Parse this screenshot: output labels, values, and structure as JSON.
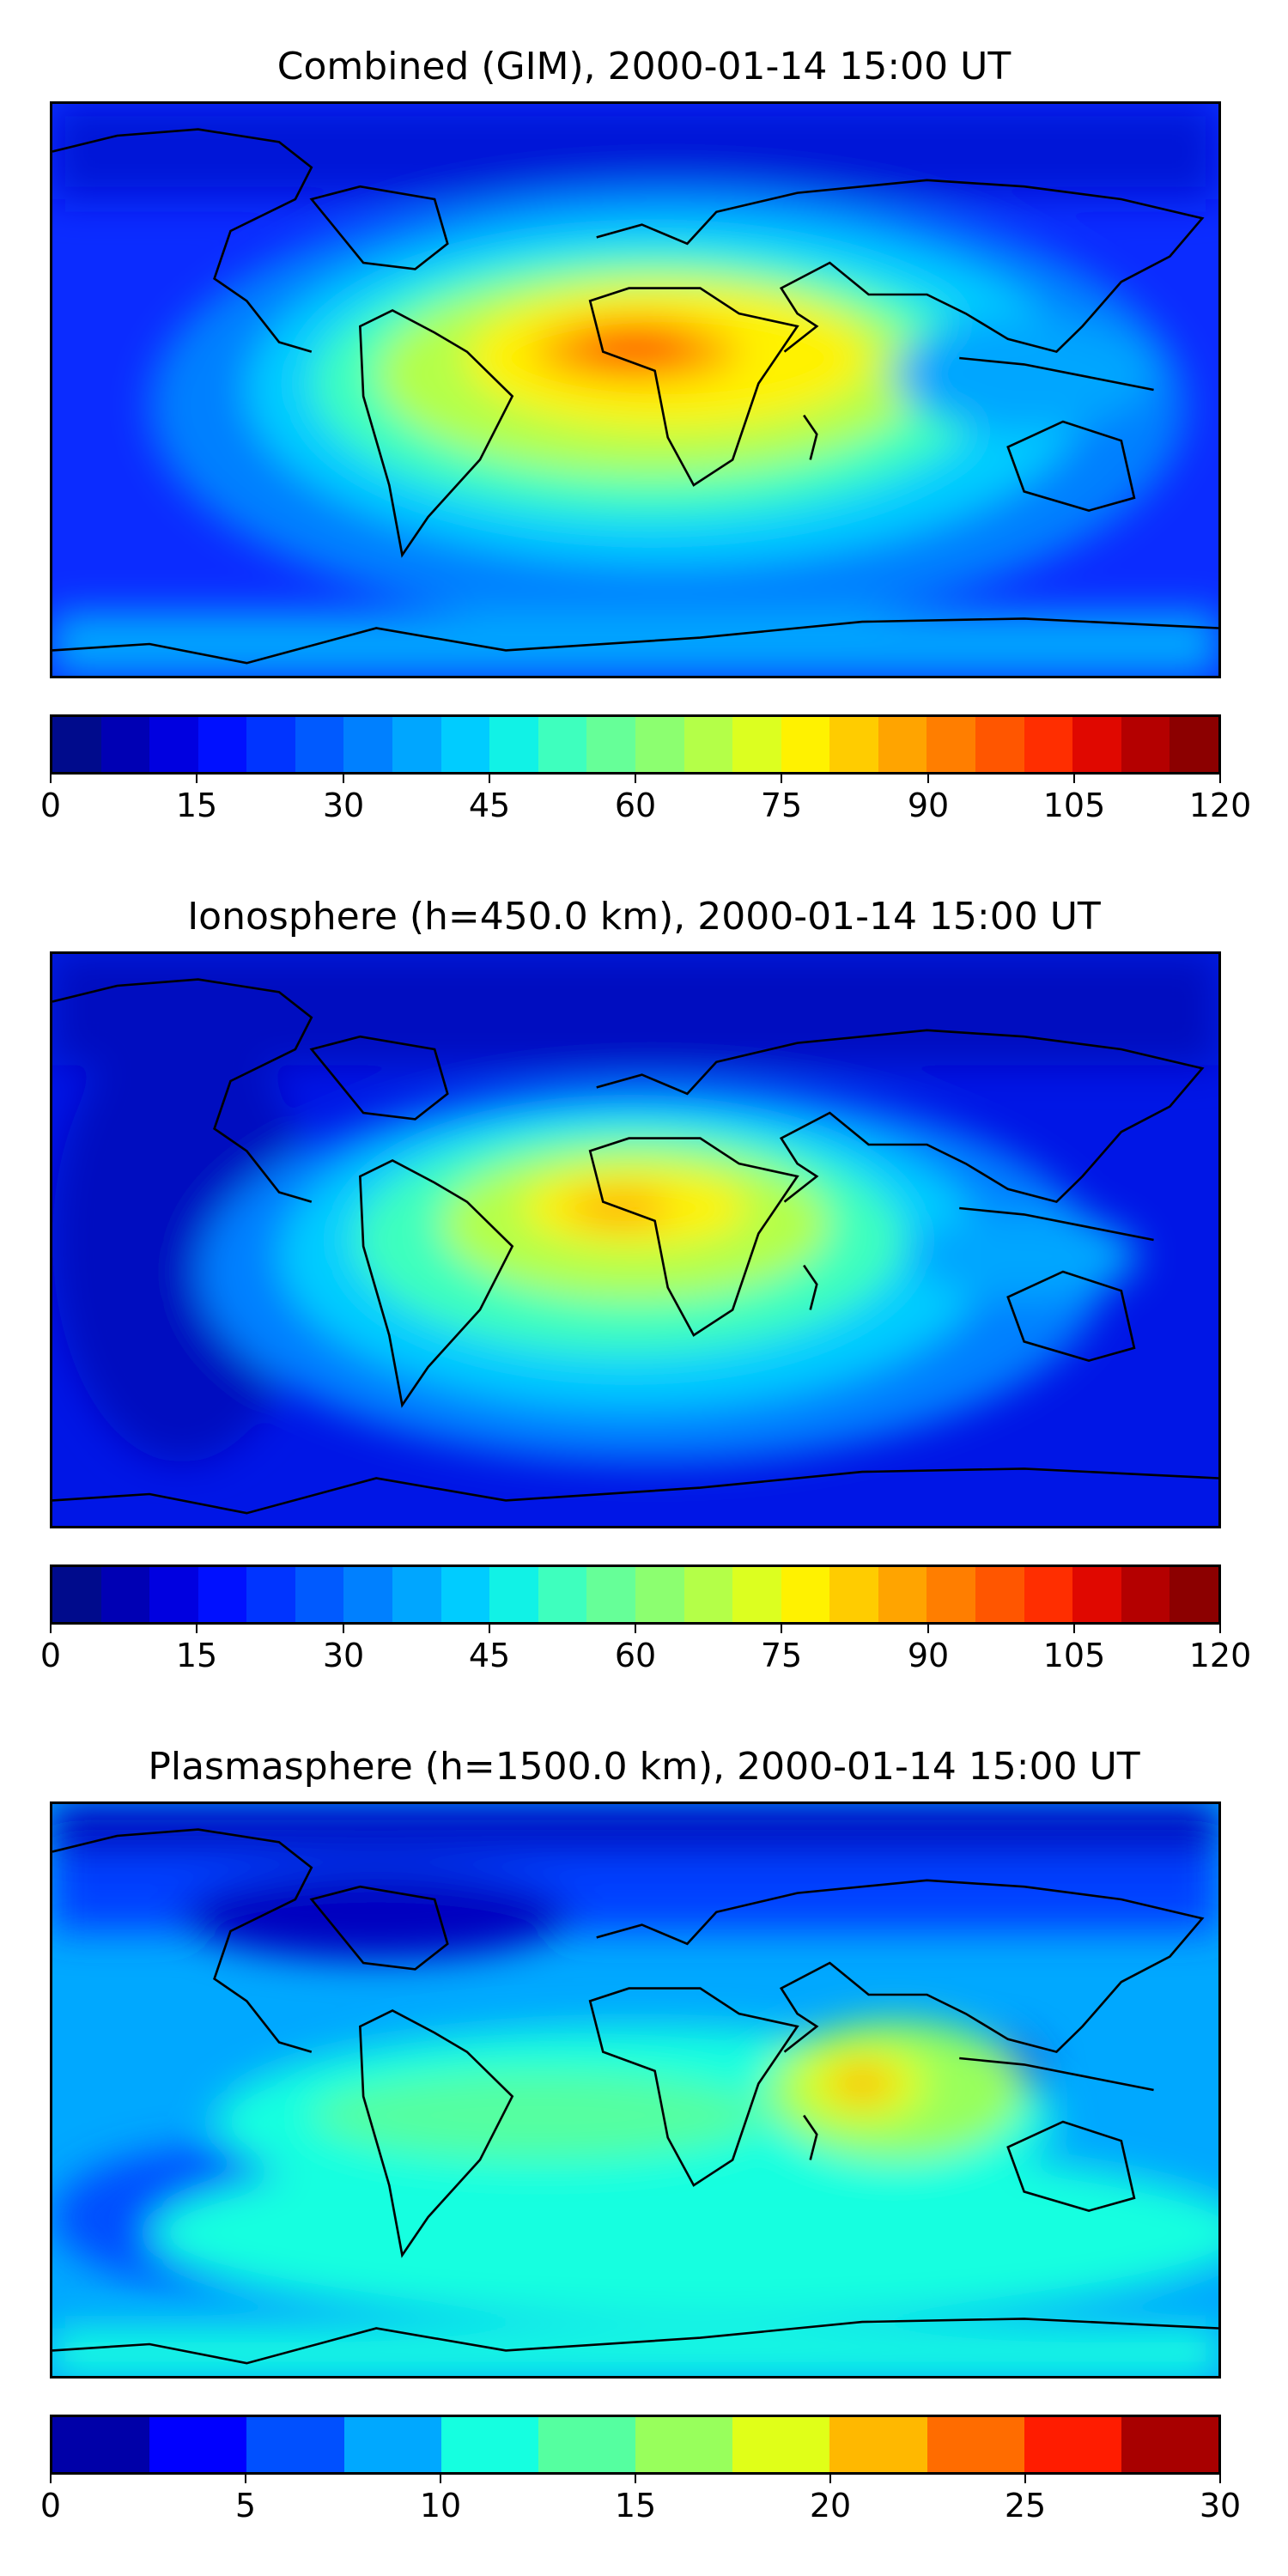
{
  "panels": [
    {
      "title": "Combined (GIM), 2000-01-14 15:00 UT",
      "colorbar": {
        "min": 0,
        "max": 120,
        "tick_labels": [
          "0",
          "15",
          "30",
          "45",
          "60",
          "75",
          "90",
          "105",
          "120"
        ],
        "colors": [
          "#000b8c",
          "#0000b4",
          "#0000e0",
          "#0010ff",
          "#0034ff",
          "#005aff",
          "#0080ff",
          "#00a6ff",
          "#00ccff",
          "#11f2e6",
          "#3effbe",
          "#66ff98",
          "#8cff70",
          "#b4ff48",
          "#dcff20",
          "#fff200",
          "#ffcc00",
          "#ffa400",
          "#ff7e00",
          "#ff5600",
          "#ff2e00",
          "#e00800",
          "#b40000",
          "#8c0000"
        ]
      }
    },
    {
      "title": "Ionosphere  (h=450.0 km), 2000-01-14 15:00 UT",
      "colorbar": {
        "min": 0,
        "max": 120,
        "tick_labels": [
          "0",
          "15",
          "30",
          "45",
          "60",
          "75",
          "90",
          "105",
          "120"
        ],
        "colors": [
          "#000b8c",
          "#0000b4",
          "#0000e0",
          "#0010ff",
          "#0034ff",
          "#005aff",
          "#0080ff",
          "#00a6ff",
          "#00ccff",
          "#11f2e6",
          "#3effbe",
          "#66ff98",
          "#8cff70",
          "#b4ff48",
          "#dcff20",
          "#fff200",
          "#ffcc00",
          "#ffa400",
          "#ff7e00",
          "#ff5600",
          "#ff2e00",
          "#e00800",
          "#b40000",
          "#8c0000"
        ]
      }
    },
    {
      "title": "Plasmasphere (h=1500.0 km), 2000-01-14 15:00 UT",
      "colorbar": {
        "min": 0,
        "max": 30,
        "tick_labels": [
          "0",
          "5",
          "10",
          "15",
          "20",
          "25",
          "30"
        ],
        "colors": [
          "#0000a8",
          "#0000ff",
          "#0050ff",
          "#00a8ff",
          "#15ffe0",
          "#55ffa0",
          "#98ff5c",
          "#e0ff18",
          "#ffb800",
          "#ff6c00",
          "#ff1c00",
          "#a80000"
        ]
      }
    }
  ]
}
